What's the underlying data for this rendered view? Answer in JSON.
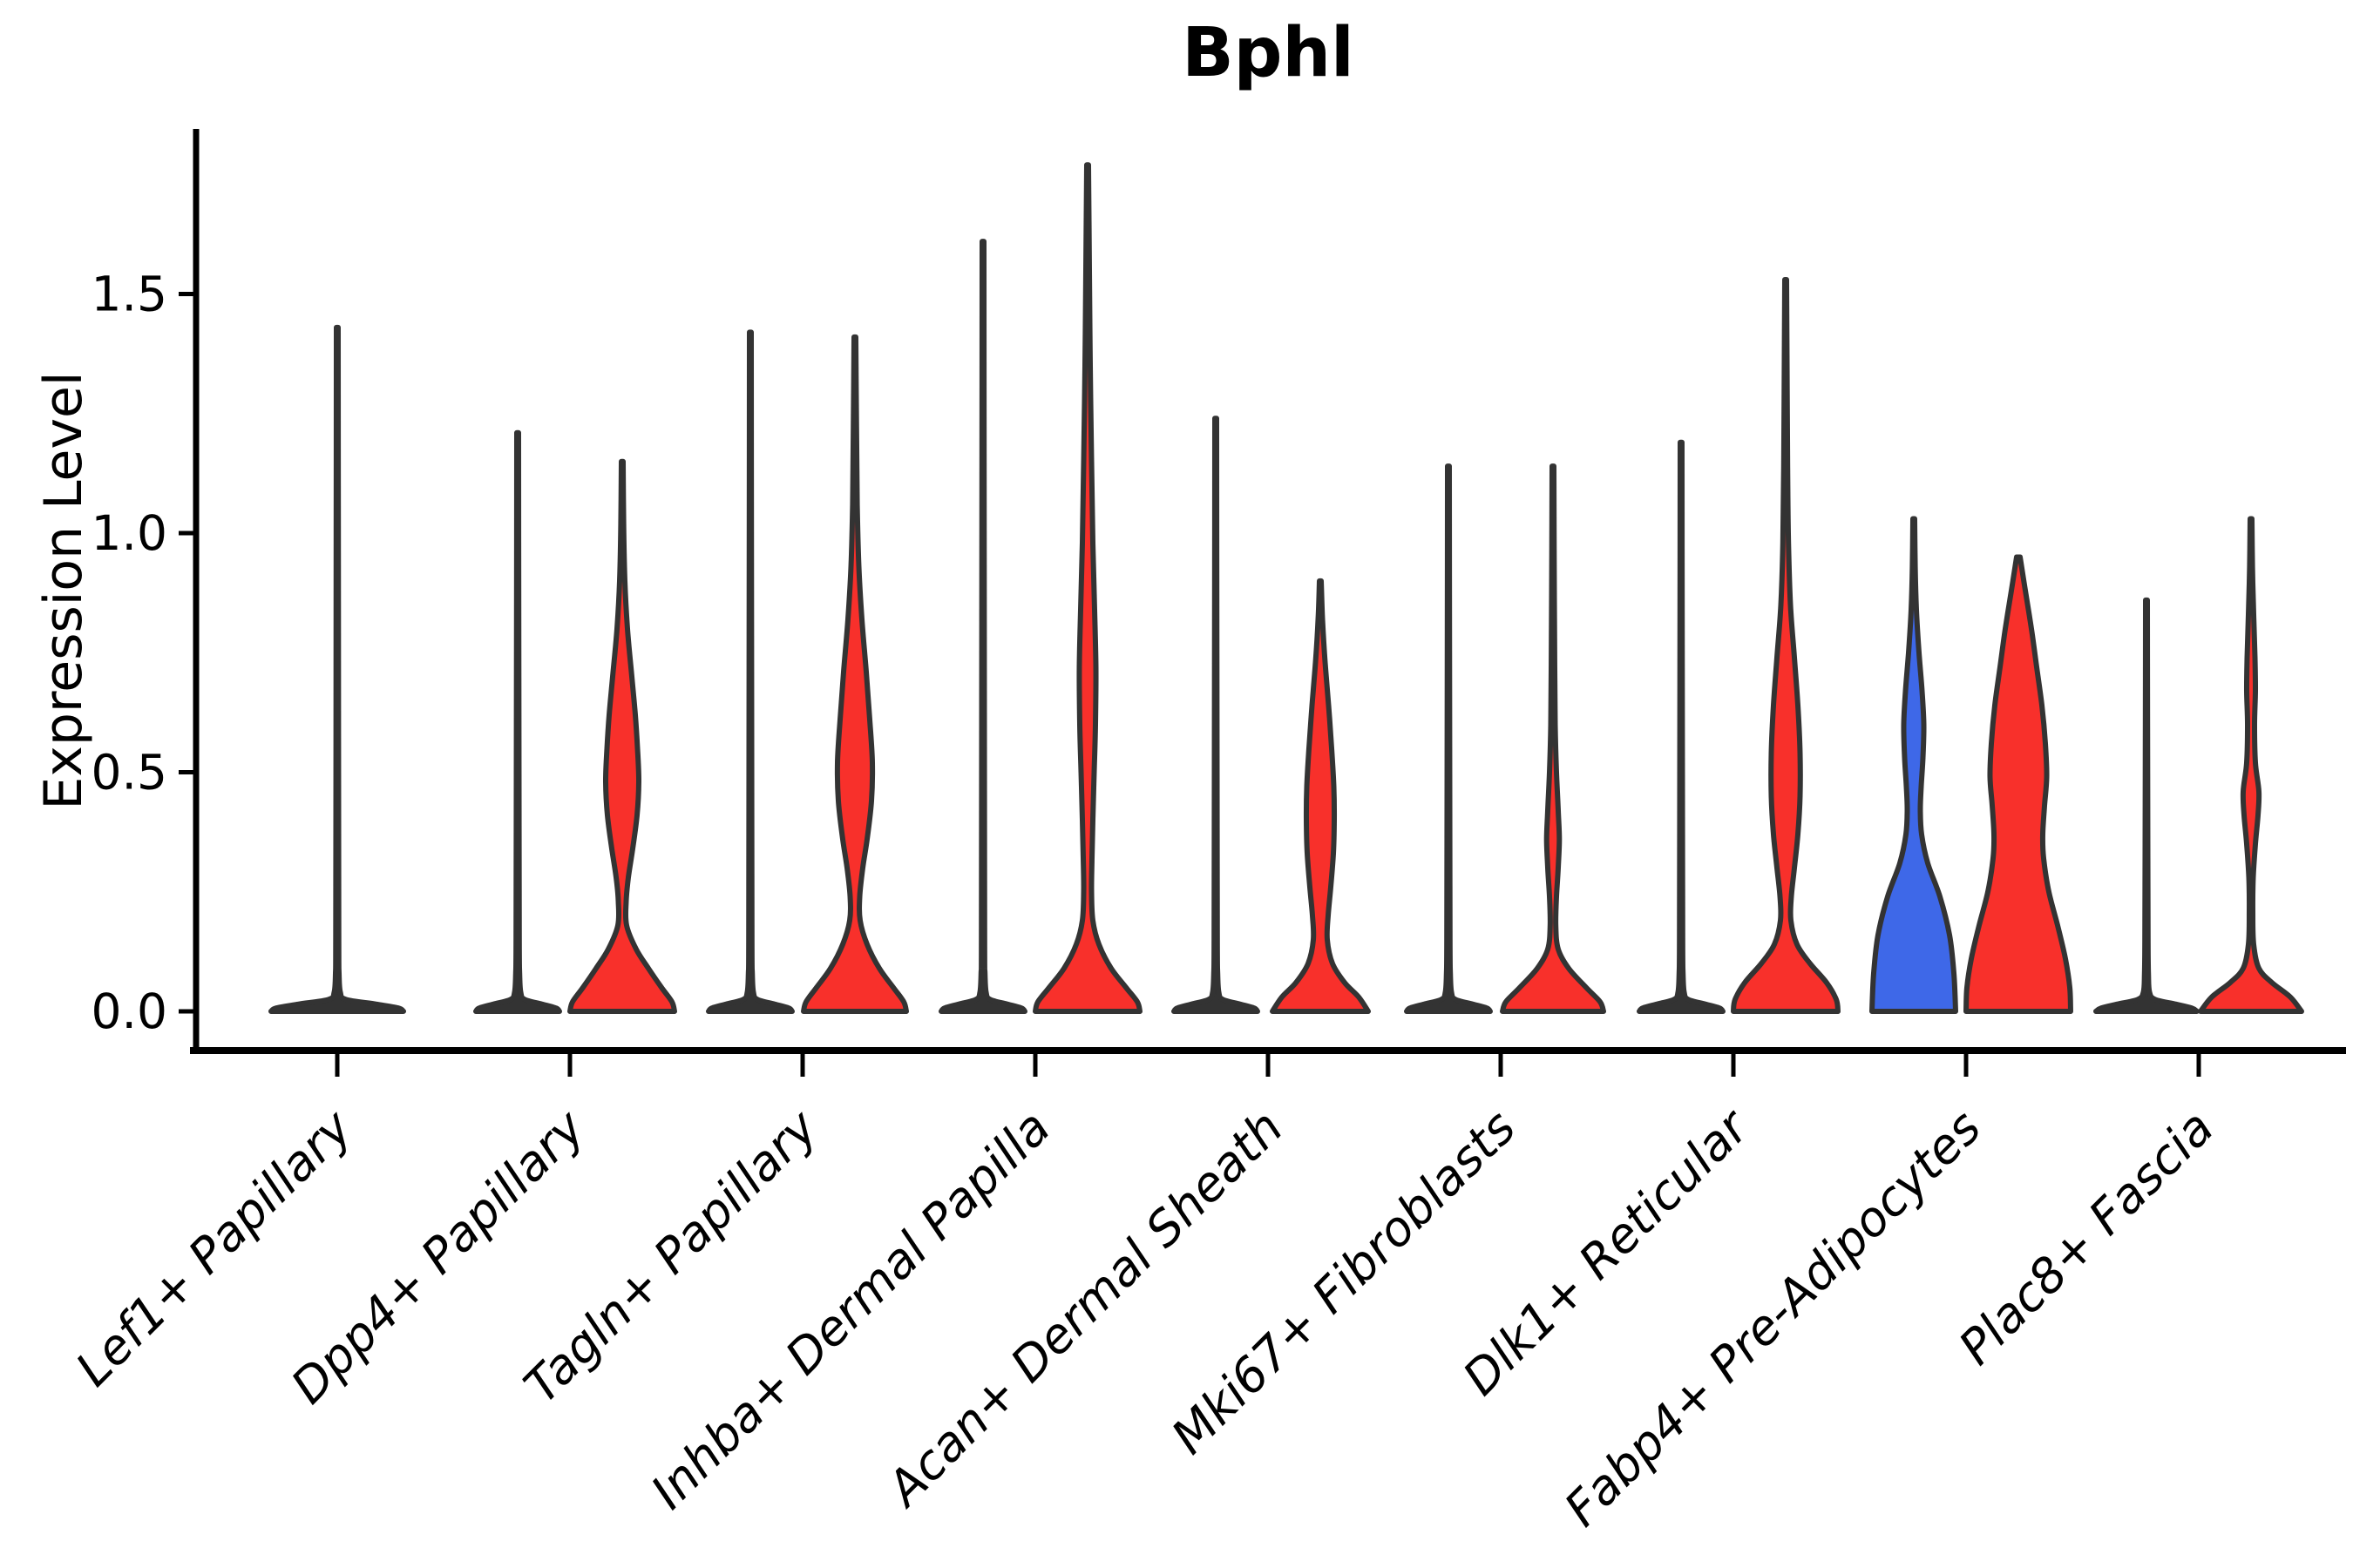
{
  "title": "Bphl",
  "axes": {
    "ylabel": "Expression Level",
    "ytick_labels": [
      "0.0",
      "0.5",
      "1.0",
      "1.5"
    ],
    "ytick_values": [
      0,
      0.5,
      1.0,
      1.5
    ],
    "ylim": [
      -0.09,
      1.85
    ],
    "categories": [
      "Lef1+ Papillary",
      "Dpp4+ Papillary",
      "Tagln+ Papillary",
      "Inhba+ Dermal Papilla",
      "Acan+ Dermal Sheath",
      "Mki67+ Fibroblasts",
      "Dlk1+ Reticular",
      "Fabp4+ Pre-Adipocytes",
      "Plac8+ Fascia"
    ]
  },
  "chart_data": {
    "type": "violin",
    "title": "Bphl",
    "xlabel": "",
    "ylabel": "Expression Level",
    "ylim": [
      -0.09,
      1.85
    ],
    "yticks": [
      0,
      0.5,
      1.0,
      1.5
    ],
    "grid": false,
    "legend": "none",
    "categories": [
      "Lef1+ Papillary",
      "Dpp4+ Papillary",
      "Tagln+ Papillary",
      "Inhba+ Dermal Papilla",
      "Acan+ Dermal Sheath",
      "Mki67+ Fibroblasts",
      "Dlk1+ Reticular",
      "Fabp4+ Pre-Adipocytes",
      "Plac8+ Fascia"
    ],
    "colors": {
      "red": "#F8302B",
      "blue": "#3E68E8",
      "dark": "#333333",
      "axis": "#000000"
    },
    "violins": [
      {
        "category": "Lef1+ Papillary",
        "position": "center",
        "fill": "dark",
        "max_expression": 1.43,
        "profile": [
          [
            1.43,
            1
          ],
          [
            1.0,
            1.2
          ],
          [
            0.57,
            1.4
          ],
          [
            0.15,
            1.7
          ],
          [
            0.08,
            2
          ],
          [
            0.04,
            3.5
          ],
          [
            0.025,
            10
          ],
          [
            0.015,
            45
          ],
          [
            0.007,
            70
          ],
          [
            0,
            76
          ]
        ]
      },
      {
        "category": "Dpp4+ Papillary",
        "position": "left",
        "fill": "dark",
        "max_expression": 1.21,
        "profile": [
          [
            1.21,
            1
          ],
          [
            0.85,
            1.2
          ],
          [
            0.48,
            1.5
          ],
          [
            0.15,
            1.8
          ],
          [
            0.08,
            2.2
          ],
          [
            0.04,
            3.5
          ],
          [
            0.025,
            8
          ],
          [
            0.015,
            28
          ],
          [
            0.007,
            44
          ],
          [
            0,
            48
          ]
        ]
      },
      {
        "category": "Dpp4+ Papillary",
        "position": "right",
        "fill": "red",
        "max_expression": 1.15,
        "profile": [
          [
            1.15,
            1
          ],
          [
            1.02,
            1.6
          ],
          [
            0.9,
            3
          ],
          [
            0.8,
            6
          ],
          [
            0.7,
            11
          ],
          [
            0.62,
            15
          ],
          [
            0.55,
            17.5
          ],
          [
            0.48,
            19
          ],
          [
            0.41,
            17
          ],
          [
            0.34,
            12
          ],
          [
            0.28,
            7
          ],
          [
            0.23,
            4.5
          ],
          [
            0.18,
            5
          ],
          [
            0.13,
            16
          ],
          [
            0.09,
            30
          ],
          [
            0.05,
            45
          ],
          [
            0.02,
            57
          ],
          [
            0,
            60
          ]
        ]
      },
      {
        "category": "Tagln+ Papillary",
        "position": "left",
        "fill": "dark",
        "max_expression": 1.42,
        "profile": [
          [
            1.42,
            1
          ],
          [
            1.0,
            1.2
          ],
          [
            0.57,
            1.5
          ],
          [
            0.15,
            1.8
          ],
          [
            0.08,
            2.2
          ],
          [
            0.04,
            3.5
          ],
          [
            0.025,
            8
          ],
          [
            0.015,
            28
          ],
          [
            0.007,
            44
          ],
          [
            0,
            48
          ]
        ]
      },
      {
        "category": "Tagln+ Papillary",
        "position": "right",
        "fill": "red",
        "max_expression": 1.41,
        "profile": [
          [
            1.41,
            1
          ],
          [
            1.22,
            1.8
          ],
          [
            1.06,
            2.6
          ],
          [
            0.93,
            4.5
          ],
          [
            0.82,
            8
          ],
          [
            0.71,
            13
          ],
          [
            0.61,
            17
          ],
          [
            0.52,
            20
          ],
          [
            0.44,
            19
          ],
          [
            0.36,
            14
          ],
          [
            0.3,
            9
          ],
          [
            0.24,
            5.5
          ],
          [
            0.19,
            6
          ],
          [
            0.14,
            14
          ],
          [
            0.09,
            28
          ],
          [
            0.05,
            44
          ],
          [
            0.02,
            56
          ],
          [
            0,
            59
          ]
        ]
      },
      {
        "category": "Inhba+ Dermal Papilla",
        "position": "left",
        "fill": "dark",
        "max_expression": 1.61,
        "profile": [
          [
            1.61,
            1
          ],
          [
            1.13,
            1.2
          ],
          [
            0.64,
            1.5
          ],
          [
            0.15,
            1.8
          ],
          [
            0.08,
            2.2
          ],
          [
            0.04,
            3.5
          ],
          [
            0.025,
            8
          ],
          [
            0.015,
            28
          ],
          [
            0.007,
            44
          ],
          [
            0,
            48
          ]
        ]
      },
      {
        "category": "Inhba+ Dermal Papilla",
        "position": "right",
        "fill": "red",
        "max_expression": 1.77,
        "profile": [
          [
            1.77,
            1
          ],
          [
            1.55,
            2
          ],
          [
            1.35,
            3
          ],
          [
            1.15,
            4.5
          ],
          [
            0.98,
            6
          ],
          [
            0.84,
            8
          ],
          [
            0.72,
            9.5
          ],
          [
            0.6,
            9
          ],
          [
            0.5,
            7.5
          ],
          [
            0.4,
            6
          ],
          [
            0.32,
            5
          ],
          [
            0.25,
            4.5
          ],
          [
            0.19,
            6
          ],
          [
            0.14,
            13
          ],
          [
            0.09,
            27
          ],
          [
            0.05,
            44
          ],
          [
            0.02,
            57
          ],
          [
            0,
            60
          ]
        ]
      },
      {
        "category": "Acan+ Dermal Sheath",
        "position": "left",
        "fill": "dark",
        "max_expression": 1.24,
        "profile": [
          [
            1.24,
            1
          ],
          [
            0.87,
            1.2
          ],
          [
            0.5,
            1.5
          ],
          [
            0.15,
            1.8
          ],
          [
            0.08,
            2.2
          ],
          [
            0.04,
            3.5
          ],
          [
            0.025,
            8
          ],
          [
            0.015,
            28
          ],
          [
            0.007,
            44
          ],
          [
            0,
            48
          ]
        ]
      },
      {
        "category": "Acan+ Dermal Sheath",
        "position": "right",
        "fill": "red",
        "max_expression": 0.9,
        "profile": [
          [
            0.9,
            1
          ],
          [
            0.82,
            2.5
          ],
          [
            0.73,
            5.5
          ],
          [
            0.64,
            9.5
          ],
          [
            0.55,
            13
          ],
          [
            0.47,
            15.5
          ],
          [
            0.4,
            16
          ],
          [
            0.33,
            15
          ],
          [
            0.26,
            12
          ],
          [
            0.2,
            9
          ],
          [
            0.15,
            8
          ],
          [
            0.1,
            14
          ],
          [
            0.06,
            28
          ],
          [
            0.03,
            44
          ],
          [
            0,
            55
          ]
        ]
      },
      {
        "category": "Mki67+ Fibroblasts",
        "position": "left",
        "fill": "dark",
        "max_expression": 1.14,
        "profile": [
          [
            1.14,
            1
          ],
          [
            0.8,
            1.2
          ],
          [
            0.46,
            1.5
          ],
          [
            0.15,
            1.8
          ],
          [
            0.08,
            2.2
          ],
          [
            0.04,
            3.5
          ],
          [
            0.025,
            8
          ],
          [
            0.015,
            28
          ],
          [
            0.007,
            44
          ],
          [
            0,
            48
          ]
        ]
      },
      {
        "category": "Mki67+ Fibroblasts",
        "position": "right",
        "fill": "red",
        "max_expression": 1.14,
        "profile": [
          [
            1.14,
            1
          ],
          [
            0.97,
            1.3
          ],
          [
            0.78,
            1.8
          ],
          [
            0.6,
            2.5
          ],
          [
            0.5,
            4
          ],
          [
            0.42,
            6
          ],
          [
            0.36,
            7.3
          ],
          [
            0.3,
            6
          ],
          [
            0.24,
            4
          ],
          [
            0.18,
            3.2
          ],
          [
            0.13,
            6
          ],
          [
            0.09,
            18
          ],
          [
            0.05,
            38
          ],
          [
            0.02,
            54
          ],
          [
            0,
            58
          ]
        ]
      },
      {
        "category": "Dlk1+ Reticular",
        "position": "left",
        "fill": "dark",
        "max_expression": 1.19,
        "profile": [
          [
            1.19,
            1
          ],
          [
            0.83,
            1.2
          ],
          [
            0.48,
            1.5
          ],
          [
            0.15,
            1.8
          ],
          [
            0.08,
            2.2
          ],
          [
            0.04,
            3.5
          ],
          [
            0.025,
            8
          ],
          [
            0.015,
            28
          ],
          [
            0.007,
            44
          ],
          [
            0,
            48
          ]
        ]
      },
      {
        "category": "Dlk1+ Reticular",
        "position": "right",
        "fill": "red",
        "max_expression": 1.53,
        "profile": [
          [
            1.53,
            1
          ],
          [
            1.33,
            1.6
          ],
          [
            1.14,
            2.2
          ],
          [
            0.98,
            3.2
          ],
          [
            0.85,
            5.5
          ],
          [
            0.74,
            10
          ],
          [
            0.64,
            14
          ],
          [
            0.54,
            16.5
          ],
          [
            0.45,
            16.5
          ],
          [
            0.37,
            14
          ],
          [
            0.3,
            10
          ],
          [
            0.24,
            6.5
          ],
          [
            0.19,
            6
          ],
          [
            0.14,
            13
          ],
          [
            0.1,
            28
          ],
          [
            0.06,
            47
          ],
          [
            0.025,
            58
          ],
          [
            0,
            60
          ]
        ]
      },
      {
        "category": "Fabp4+ Pre-Adipocytes",
        "position": "left",
        "fill": "blue",
        "max_expression": 1.03,
        "profile": [
          [
            1.03,
            1
          ],
          [
            0.93,
            1.6
          ],
          [
            0.84,
            3
          ],
          [
            0.75,
            6
          ],
          [
            0.67,
            9.5
          ],
          [
            0.6,
            11.5
          ],
          [
            0.53,
            10.5
          ],
          [
            0.47,
            8.5
          ],
          [
            0.42,
            7.5
          ],
          [
            0.37,
            9
          ],
          [
            0.31,
            16
          ],
          [
            0.24,
            30
          ],
          [
            0.16,
            41
          ],
          [
            0.08,
            46
          ],
          [
            0,
            48
          ]
        ]
      },
      {
        "category": "Fabp4+ Pre-Adipocytes",
        "position": "right",
        "fill": "red",
        "max_expression": 0.95,
        "profile": [
          [
            0.95,
            2
          ],
          [
            0.88,
            8
          ],
          [
            0.8,
            15
          ],
          [
            0.72,
            21
          ],
          [
            0.64,
            27
          ],
          [
            0.56,
            31
          ],
          [
            0.49,
            32.5
          ],
          [
            0.43,
            30
          ],
          [
            0.37,
            28
          ],
          [
            0.32,
            29
          ],
          [
            0.25,
            35
          ],
          [
            0.18,
            45
          ],
          [
            0.11,
            54
          ],
          [
            0.05,
            59
          ],
          [
            0,
            60
          ]
        ]
      },
      {
        "category": "Plac8+ Fascia",
        "position": "left",
        "fill": "dark",
        "max_expression": 0.86,
        "profile": [
          [
            0.86,
            1
          ],
          [
            0.6,
            1.2
          ],
          [
            0.35,
            1.5
          ],
          [
            0.15,
            1.8
          ],
          [
            0.08,
            2.2
          ],
          [
            0.04,
            3.5
          ],
          [
            0.025,
            10
          ],
          [
            0.015,
            34
          ],
          [
            0.007,
            52
          ],
          [
            0,
            58
          ]
        ]
      },
      {
        "category": "Plac8+ Fascia",
        "position": "right",
        "fill": "red",
        "max_expression": 1.03,
        "profile": [
          [
            1.03,
            1
          ],
          [
            0.93,
            1.6
          ],
          [
            0.83,
            3
          ],
          [
            0.74,
            4.5
          ],
          [
            0.67,
            5
          ],
          [
            0.6,
            4
          ],
          [
            0.52,
            5
          ],
          [
            0.46,
            9
          ],
          [
            0.41,
            8
          ],
          [
            0.35,
            5
          ],
          [
            0.28,
            2.5
          ],
          [
            0.21,
            2
          ],
          [
            0.14,
            3
          ],
          [
            0.09,
            9
          ],
          [
            0.06,
            24
          ],
          [
            0.03,
            45
          ],
          [
            0,
            58
          ]
        ]
      }
    ]
  }
}
